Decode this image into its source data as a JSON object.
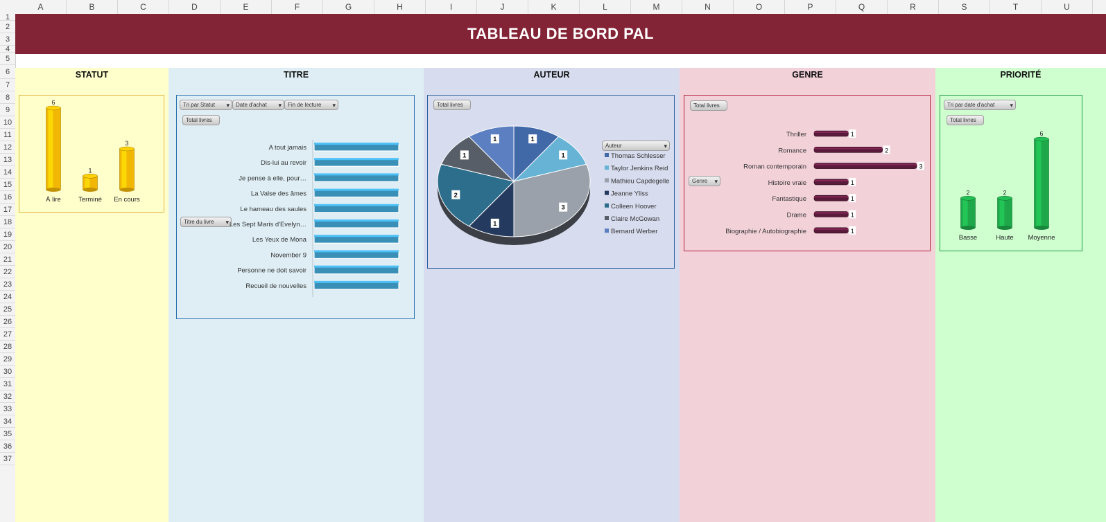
{
  "columns": [
    "A",
    "B",
    "C",
    "D",
    "E",
    "F",
    "G",
    "H",
    "I",
    "J",
    "K",
    "L",
    "M",
    "N",
    "O",
    "P",
    "Q",
    "R",
    "S",
    "T",
    "U"
  ],
  "rows": [
    "1",
    "2",
    "3",
    "4",
    "5",
    "6",
    "7",
    "8",
    "9",
    "10",
    "11",
    "12",
    "13",
    "14",
    "15",
    "16",
    "17",
    "18",
    "19",
    "20",
    "21",
    "22",
    "23",
    "24",
    "25",
    "26",
    "27",
    "28",
    "29",
    "30",
    "31",
    "32",
    "33",
    "34",
    "35",
    "36",
    "37"
  ],
  "dashboard_title": "TABLEAU DE BORD PAL",
  "panels": {
    "statut": {
      "title": "STATUT"
    },
    "titre": {
      "title": "TITRE",
      "sort_statut": "Tri par Statut",
      "date_achat": "Date d'achat",
      "fin_lecture": "Fin de lecture",
      "total": "Total livres",
      "titre_filter": "Titre du livre"
    },
    "auteur": {
      "title": "AUTEUR",
      "total": "Total livres",
      "auteur_filter": "Auteur"
    },
    "genre": {
      "title": "GENRE",
      "total": "Total livres",
      "genre_filter": "Genre"
    },
    "priorite": {
      "title": "PRIORITÉ",
      "sort_date": "Tri par date d'achat",
      "total": "Total livres"
    }
  },
  "colors": {
    "banner": "#832336",
    "statut_bg": "#ffffcc",
    "titre_bg": "#deeef4",
    "auteur_bg": "#d7dcee",
    "genre_bg": "#f2d1d9",
    "priorite_bg": "#cfffcf"
  },
  "chart_data": [
    {
      "name": "statut",
      "type": "bar",
      "categories": [
        "À lire",
        "Terminé",
        "En cours"
      ],
      "values": [
        6,
        1,
        3
      ],
      "color": "#f2b705"
    },
    {
      "name": "titre",
      "type": "bar",
      "orientation": "horizontal",
      "categories": [
        "A tout jamais",
        "Dis-lui au revoir",
        "Je pense à elle, pour…",
        "La Valse des âmes",
        "Le hameau des saules",
        "Les Sept Maris d'Evelyn…",
        "Les Yeux de Mona",
        "November 9",
        "Personne ne doit savoir",
        "Recueil de nouvelles"
      ],
      "values": [
        1,
        1,
        1,
        1,
        1,
        1,
        1,
        1,
        1,
        1
      ],
      "color": "#3a8fb7"
    },
    {
      "name": "auteur",
      "type": "pie",
      "series": [
        {
          "name": "Thomas Schlesser",
          "value": 1,
          "color": "#4169a8"
        },
        {
          "name": "Taylor Jenkins Reid",
          "value": 1,
          "color": "#67b3d6"
        },
        {
          "name": "Mathieu Capdegelle",
          "value": 3,
          "color": "#9aa1aa"
        },
        {
          "name": "Jeanne Yliss",
          "value": 1,
          "color": "#243a5e"
        },
        {
          "name": "Colleen Hoover",
          "value": 2,
          "color": "#2d6e8c"
        },
        {
          "name": "Claire McGowan",
          "value": 1,
          "color": "#575e67"
        },
        {
          "name": "Bernard Werber",
          "value": 1,
          "color": "#5b7fc0"
        }
      ]
    },
    {
      "name": "genre",
      "type": "bar",
      "orientation": "horizontal",
      "categories": [
        "Thriller",
        "Romance",
        "Roman contemporain",
        "Histoire vraie",
        "Fantastique",
        "Drame",
        "Biographie / Autobiographie"
      ],
      "values": [
        1,
        2,
        3,
        1,
        1,
        1,
        1
      ],
      "color": "#5a1a3a"
    },
    {
      "name": "priorite",
      "type": "bar",
      "categories": [
        "Basse",
        "Haute",
        "Moyenne"
      ],
      "values": [
        2,
        2,
        6
      ],
      "color": "#1ea84a"
    }
  ]
}
